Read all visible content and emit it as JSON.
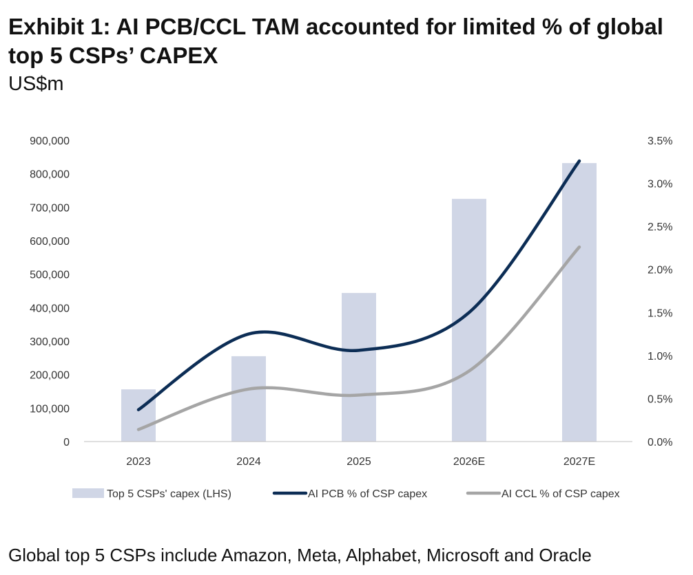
{
  "title": "Exhibit 1: AI PCB/CCL TAM accounted for limited % of global top 5 CSPs’ CAPEX",
  "unit": "US$m",
  "footnote": "Global top 5 CSPs include Amazon, Meta, Alphabet, Microsoft and Oracle",
  "chart_data": {
    "type": "bar+line",
    "categories": [
      "2023",
      "2024",
      "2025",
      "2026E",
      "2027E"
    ],
    "left_axis": {
      "ylim": [
        0,
        900000
      ],
      "ticks": [
        "0",
        "100,000",
        "200,000",
        "300,000",
        "400,000",
        "500,000",
        "600,000",
        "700,000",
        "800,000",
        "900,000"
      ]
    },
    "right_axis": {
      "ylim": [
        0,
        3.5
      ],
      "ticks": [
        "0.0%",
        "0.5%",
        "1.0%",
        "1.5%",
        "2.0%",
        "2.5%",
        "3.0%",
        "3.5%"
      ]
    },
    "series": [
      {
        "name": "Top 5 CSPs' capex (LHS)",
        "type": "bar",
        "axis": "left",
        "color": "#d0d6e6",
        "values": [
          156000,
          255000,
          444000,
          725000,
          832000
        ]
      },
      {
        "name": "AI PCB % of CSP capex",
        "type": "line",
        "axis": "right",
        "color": "#0c2d55",
        "values": [
          0.37,
          1.25,
          1.06,
          1.5,
          3.26
        ]
      },
      {
        "name": "AI CCL % of CSP capex",
        "type": "line",
        "axis": "right",
        "color": "#a5a5a5",
        "values": [
          0.14,
          0.61,
          0.54,
          0.82,
          2.26
        ]
      }
    ],
    "legend_position": "bottom",
    "grid": false
  }
}
